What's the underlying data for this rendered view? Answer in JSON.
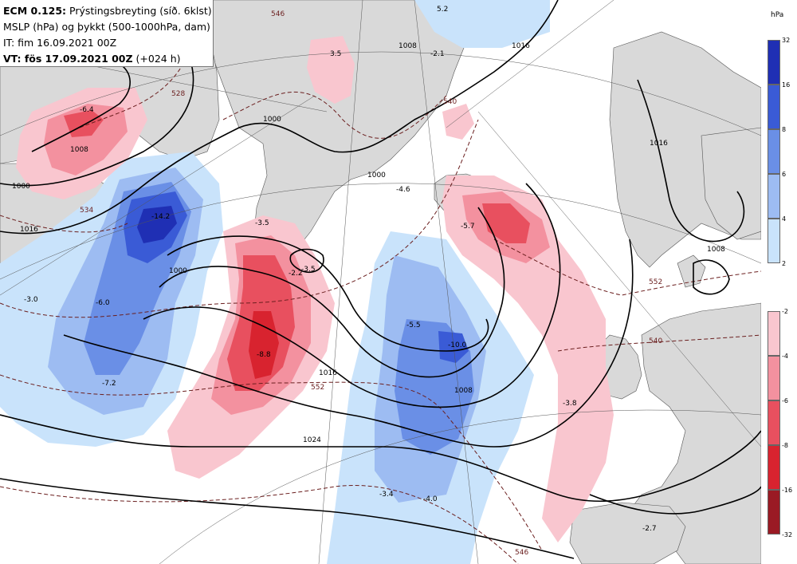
{
  "header": {
    "line1_bold": "ECM 0.125:",
    "line1_rest": " Prýstingsbreyting (síð. 6klst)",
    "line2": "MSLP (hPa) og þykkt (500-1000hPa, dam)",
    "line3": "IT: fim 16.09.2021 00Z",
    "line4_bold": "VT: fös 17.09.2021 00Z",
    "line4_rest": " (+024 h)"
  },
  "legend_rise": {
    "unit": "hPa",
    "ticks": [
      "32",
      "16",
      "8",
      "6",
      "4",
      "2"
    ],
    "colors": [
      "#1f2fb4",
      "#3a5bd6",
      "#6a8fe6",
      "#9dbcf2",
      "#c9e3fb"
    ]
  },
  "legend_fall": {
    "ticks": [
      "-2",
      "-4",
      "-6",
      "-8",
      "-16",
      "-32"
    ],
    "colors": [
      "#f9c6cf",
      "#f3919f",
      "#e8505f",
      "#d8232f",
      "#9a1a24"
    ]
  },
  "map_labels": {
    "change_values": [
      "5.2",
      "3.5",
      "-2.1",
      "-3.5",
      "-6.4",
      "-14.2",
      "-3.5",
      "-2.2",
      "-8.8",
      "-6.0",
      "-3.0",
      "-7.2",
      "-4.6",
      "-5.7",
      "-5.5",
      "-10.0",
      "-3.4",
      "-4.0",
      "-2.7",
      "-3.8"
    ],
    "isobar_values": [
      "1000",
      "1008",
      "1016",
      "1000",
      "1016",
      "1024",
      "1008",
      "1016",
      "1016",
      "1008",
      "1008",
      "1000",
      "1000"
    ],
    "thickness_values": [
      "546",
      "540",
      "552",
      "552",
      "540",
      "528",
      "546",
      "534"
    ]
  },
  "colors": {
    "land": "#d9d9d9",
    "sea": "#ffffff",
    "isobar": "#000000",
    "thickness": "#6b1f1f"
  }
}
